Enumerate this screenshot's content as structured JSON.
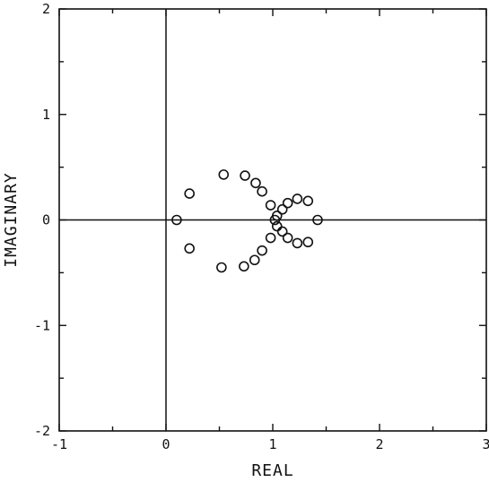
{
  "chart_data": {
    "type": "scatter",
    "title": "",
    "xlabel": "REAL",
    "ylabel": "IMAGINARY",
    "xlim": [
      -1,
      3
    ],
    "ylim": [
      -2,
      2
    ],
    "xticks": [
      -1,
      0,
      1,
      2,
      3
    ],
    "yticks": [
      -2,
      -1,
      0,
      1,
      2
    ],
    "grid": false,
    "reference_lines": {
      "x": 0,
      "y": 0
    },
    "marker": "open-circle",
    "points": [
      {
        "x": 0.1,
        "y": 0.0
      },
      {
        "x": 0.22,
        "y": 0.25
      },
      {
        "x": 0.22,
        "y": -0.27
      },
      {
        "x": 0.54,
        "y": 0.43
      },
      {
        "x": 0.52,
        "y": -0.45
      },
      {
        "x": 0.74,
        "y": 0.42
      },
      {
        "x": 0.73,
        "y": -0.44
      },
      {
        "x": 0.84,
        "y": 0.35
      },
      {
        "x": 0.83,
        "y": -0.38
      },
      {
        "x": 0.9,
        "y": 0.27
      },
      {
        "x": 0.9,
        "y": -0.29
      },
      {
        "x": 0.98,
        "y": 0.14
      },
      {
        "x": 0.98,
        "y": -0.17
      },
      {
        "x": 1.02,
        "y": 0.0
      },
      {
        "x": 1.04,
        "y": 0.04
      },
      {
        "x": 1.04,
        "y": -0.06
      },
      {
        "x": 1.09,
        "y": 0.1
      },
      {
        "x": 1.09,
        "y": -0.11
      },
      {
        "x": 1.14,
        "y": 0.16
      },
      {
        "x": 1.14,
        "y": -0.17
      },
      {
        "x": 1.23,
        "y": 0.2
      },
      {
        "x": 1.23,
        "y": -0.22
      },
      {
        "x": 1.33,
        "y": 0.18
      },
      {
        "x": 1.33,
        "y": -0.21
      },
      {
        "x": 1.42,
        "y": 0.0
      }
    ]
  }
}
